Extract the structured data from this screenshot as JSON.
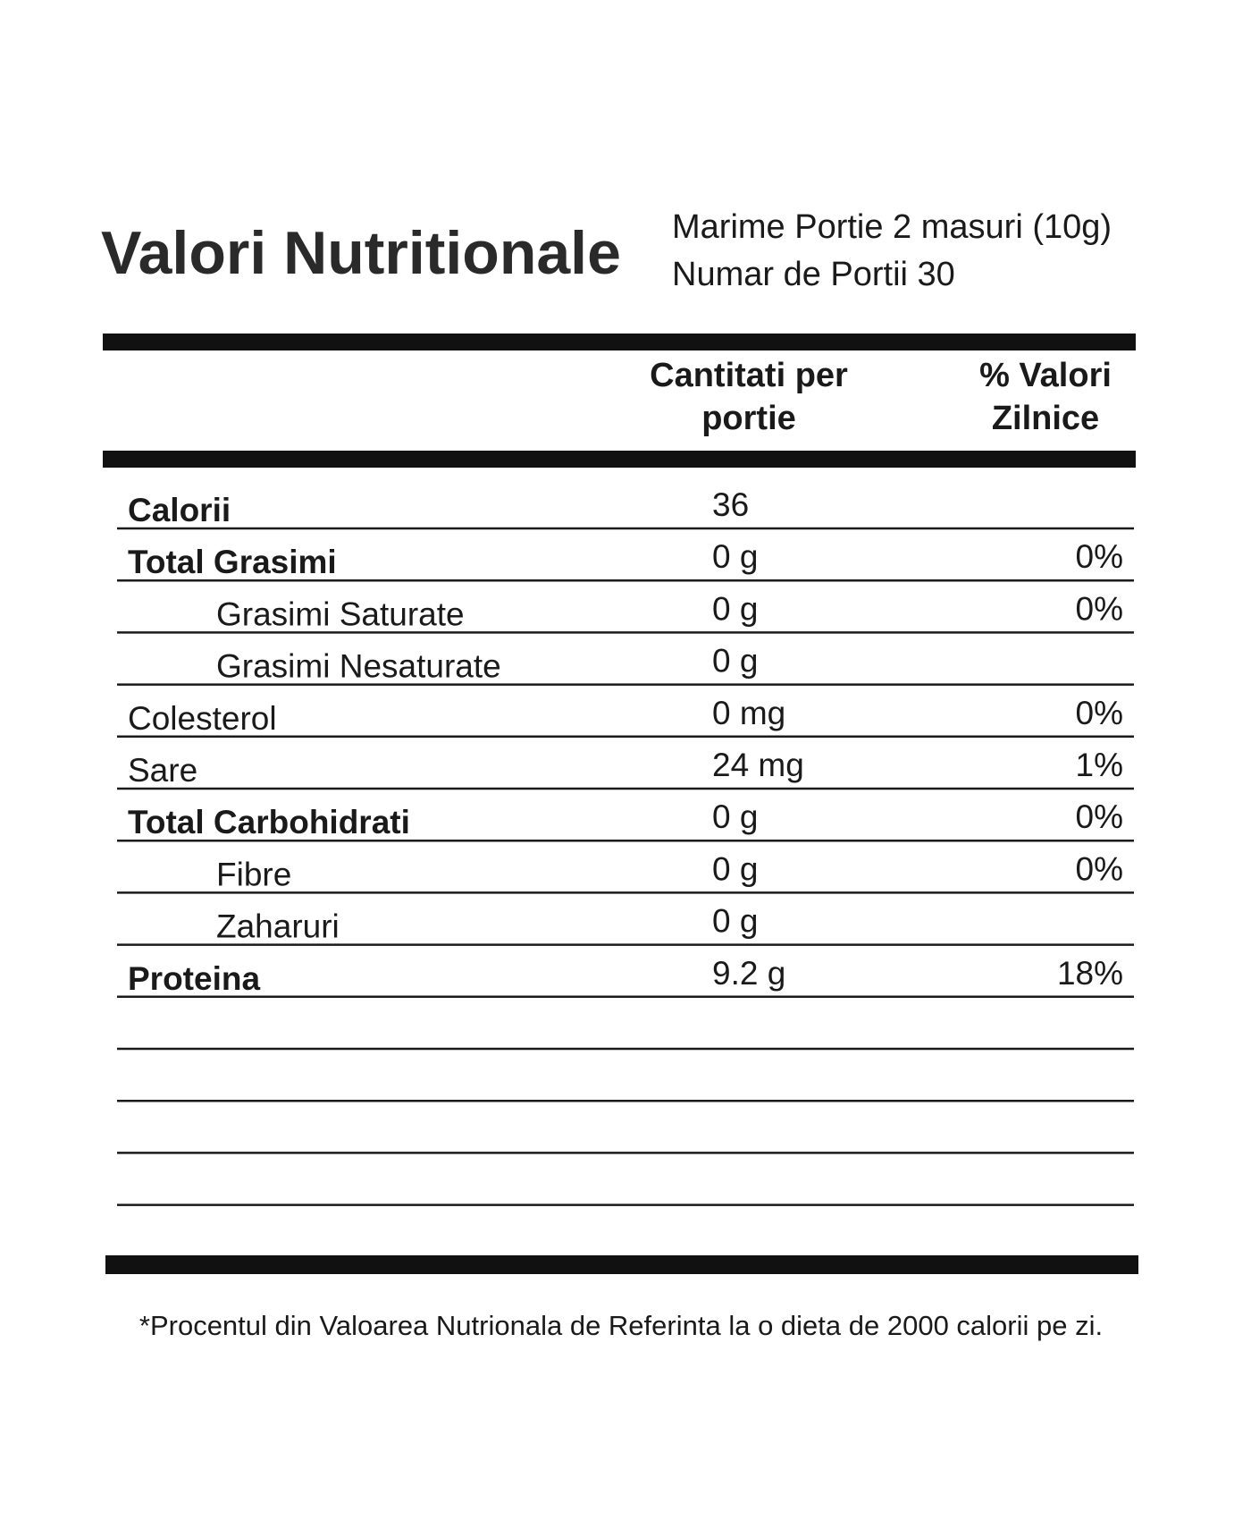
{
  "header": {
    "title": "Valori Nutritionale",
    "serving_size": "Marime Portie 2 masuri (10g)",
    "servings": "Numar de Portii 30"
  },
  "table": {
    "columns": [
      "Cantitati per portie",
      "% Valori Zilnice"
    ],
    "rows": [
      {
        "name": "Calorii",
        "style": "bold",
        "amount": "36"
      },
      {
        "name": "Total Grasimi",
        "style": "bold",
        "amount": "0 g",
        "dv": "0%"
      },
      {
        "name": "Grasimi Saturate",
        "style": "indent",
        "amount": "0 g",
        "dv": "0%"
      },
      {
        "name": "Grasimi Nesaturate",
        "style": "indent",
        "amount": "0 g"
      },
      {
        "name": "Colesterol",
        "style": "normal",
        "amount": "0 mg",
        "dv": "0%"
      },
      {
        "name": "Sare",
        "style": "normal",
        "amount": "24 mg",
        "dv": "1%"
      },
      {
        "name": "Total Carbohidrati",
        "style": "bold",
        "amount": "0 g",
        "dv": "0%"
      },
      {
        "name": "Fibre",
        "style": "indent",
        "amount": "0 g",
        "dv": "0%"
      },
      {
        "name": "Zaharuri",
        "style": "indent",
        "amount": "0 g"
      },
      {
        "name": "Proteina",
        "style": "bold",
        "amount": "9.2 g",
        "dv": "18%"
      }
    ]
  },
  "footnote": "*Procentul din Valoarea Nutrionala de Referinta la o dieta de 2000 calorii pe zi."
}
